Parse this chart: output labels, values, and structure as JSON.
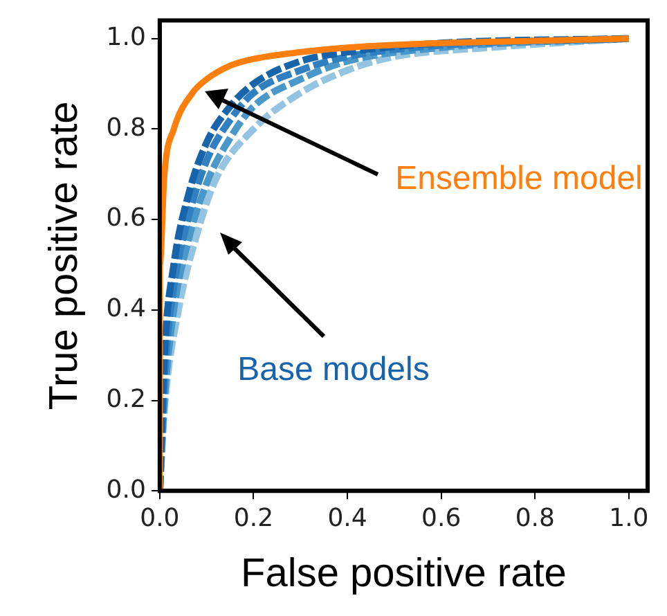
{
  "chart_data": {
    "type": "line",
    "xlabel": "False positive rate",
    "ylabel": "True positive rate",
    "xlim": [
      0,
      1.04
    ],
    "ylim": [
      0,
      1.04
    ],
    "xticks": [
      {
        "value": 0,
        "label": "0.0"
      },
      {
        "value": 0.2,
        "label": "0.2"
      },
      {
        "value": 0.4,
        "label": "0.4"
      },
      {
        "value": 0.6,
        "label": "0.6"
      },
      {
        "value": 0.8,
        "label": "0.8"
      },
      {
        "value": 1,
        "label": "1.0"
      }
    ],
    "yticks": [
      {
        "value": 0,
        "label": "0.0"
      },
      {
        "value": 0.2,
        "label": "0.2"
      },
      {
        "value": 0.4,
        "label": "0.4"
      },
      {
        "value": 0.6,
        "label": "0.6"
      },
      {
        "value": 0.8,
        "label": "0.8"
      },
      {
        "value": 1,
        "label": "1.0"
      }
    ],
    "grid": false,
    "legend": false,
    "marker": "none",
    "series": [
      {
        "color": "#ff7f0e",
        "line_style": "solid",
        "x": [
          0,
          0,
          0.01,
          0.03,
          0.07,
          0.1,
          0.15,
          0.2,
          0.3,
          0.4,
          0.6,
          0.8,
          1
        ],
        "values": [
          0,
          0.5,
          0.7,
          0.8,
          0.88,
          0.91,
          0.94,
          0.955,
          0.97,
          0.98,
          0.99,
          0.995,
          1
        ]
      },
      {
        "color": "#1764ab",
        "line_style": "dashed",
        "x": [
          0,
          0.01,
          0.03,
          0.06,
          0.1,
          0.15,
          0.2,
          0.3,
          0.4,
          0.6,
          1
        ],
        "values": [
          0,
          0.3,
          0.5,
          0.65,
          0.77,
          0.85,
          0.9,
          0.95,
          0.97,
          0.99,
          1
        ]
      },
      {
        "color": "#2f7fc1",
        "line_style": "dashed",
        "x": [
          0,
          0.01,
          0.03,
          0.06,
          0.1,
          0.15,
          0.2,
          0.3,
          0.4,
          0.6,
          1
        ],
        "values": [
          0,
          0.25,
          0.45,
          0.6,
          0.73,
          0.82,
          0.88,
          0.93,
          0.96,
          0.985,
          1
        ]
      },
      {
        "color": "#4a98c9",
        "line_style": "dashed",
        "x": [
          0,
          0.01,
          0.03,
          0.06,
          0.1,
          0.15,
          0.2,
          0.3,
          0.4,
          0.6,
          1
        ],
        "values": [
          0,
          0.2,
          0.4,
          0.55,
          0.68,
          0.78,
          0.85,
          0.91,
          0.95,
          0.98,
          1
        ]
      },
      {
        "color": "#94c4df",
        "line_style": "dashed",
        "x": [
          0,
          0.01,
          0.04,
          0.08,
          0.12,
          0.2,
          0.3,
          0.4,
          0.5,
          0.7,
          1
        ],
        "values": [
          0,
          0.18,
          0.4,
          0.57,
          0.69,
          0.8,
          0.88,
          0.93,
          0.96,
          0.98,
          1
        ]
      }
    ],
    "annotations": [
      "Ensemble model",
      "Base models"
    ]
  }
}
